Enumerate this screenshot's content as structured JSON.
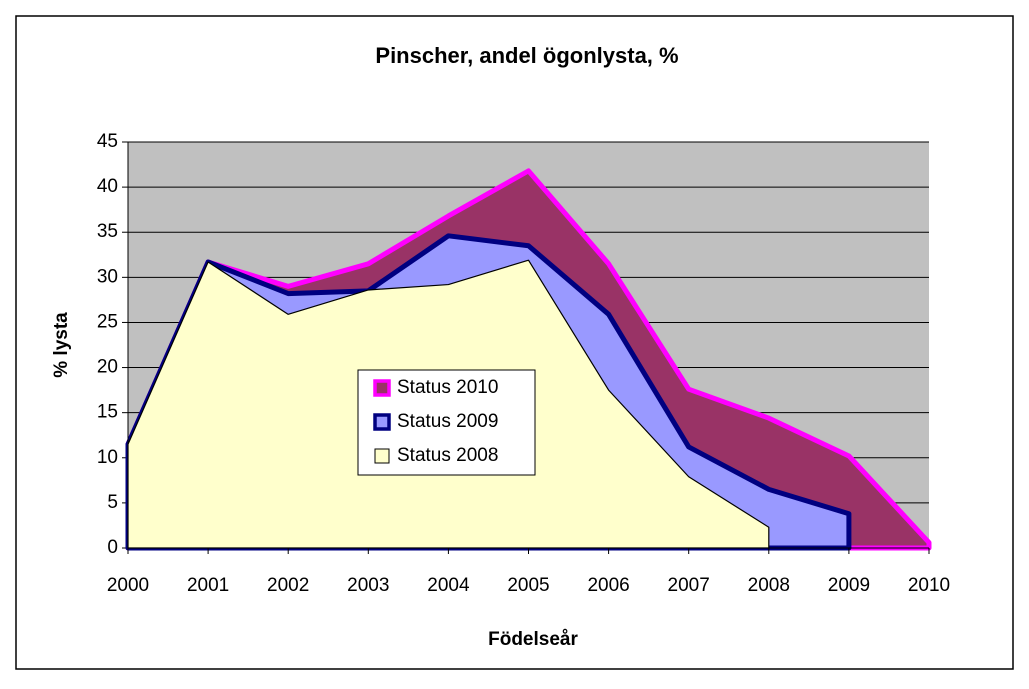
{
  "chart_data": {
    "type": "area",
    "title": "Pinscher, andel ögonlysta, %",
    "x_label": "Födelseår",
    "y_label": "% lysta",
    "categories": [
      "2000",
      "2001",
      "2002",
      "2003",
      "2004",
      "2005",
      "2006",
      "2007",
      "2008",
      "2009",
      "2010"
    ],
    "series": [
      {
        "name": "Status 2010",
        "color": "#993366",
        "border": "#ff00ff",
        "values": [
          11.5,
          31.7,
          29,
          31.5,
          36.8,
          41.8,
          31.5,
          17.6,
          14.4,
          10.2,
          0.6
        ]
      },
      {
        "name": "Status 2009",
        "color": "#9999ff",
        "border": "#000080",
        "values": [
          11.5,
          31.7,
          28.2,
          28.5,
          34.6,
          33.5,
          25.9,
          11.2,
          6.5,
          3.8,
          null
        ]
      },
      {
        "name": "Status 2008",
        "color": "#ffffcc",
        "border": "#000000",
        "values": [
          11.5,
          31.7,
          25.9,
          28.6,
          29.2,
          31.9,
          17.5,
          7.9,
          2.3,
          null,
          null
        ]
      }
    ],
    "ylim": [
      0,
      45
    ],
    "yticks": [
      0,
      5,
      10,
      15,
      20,
      25,
      30,
      35,
      40,
      45
    ],
    "grid": true,
    "background": "#c0c0c0"
  }
}
